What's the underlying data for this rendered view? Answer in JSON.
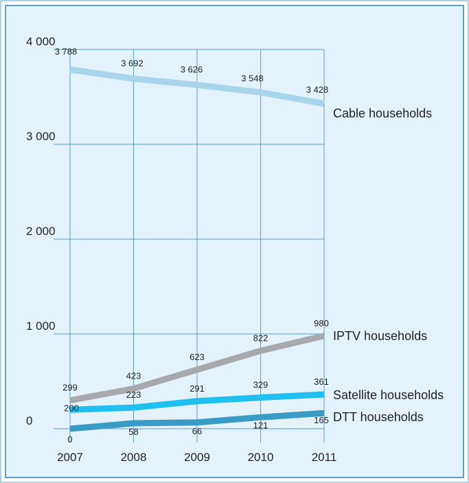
{
  "colors": {
    "panel_bg": "#e3f2fb",
    "panel_border": "#5aa0c8",
    "grid": "#5aa0c8",
    "text": "#231f20"
  },
  "chart_data": {
    "type": "line",
    "title": "",
    "xlabel": "",
    "ylabel": "",
    "x": [
      "2007",
      "2008",
      "2009",
      "2010",
      "2011"
    ],
    "ylim": [
      0,
      4000
    ],
    "yticks": [
      0,
      1000,
      2000,
      3000,
      4000
    ],
    "ytick_labels": [
      "0",
      "1 000",
      "2 000",
      "3 000",
      "4 000"
    ],
    "grid": true,
    "legend": "none",
    "series": [
      {
        "name": "Cable households",
        "color": "#a9d5ea",
        "values": [
          3788,
          3692,
          3626,
          3548,
          3428
        ],
        "labels": [
          "3 788",
          "3 692",
          "3 626",
          "3 548",
          "3 428"
        ]
      },
      {
        "name": "IPTV households",
        "color": "#a7a9ac",
        "values": [
          299,
          423,
          623,
          822,
          980
        ],
        "labels": [
          "299",
          "423",
          "623",
          "822",
          "980"
        ]
      },
      {
        "name": "Satellite households",
        "color": "#1fbfef",
        "values": [
          200,
          223,
          291,
          329,
          361
        ],
        "labels": [
          "200",
          "223",
          "291",
          "329",
          "361"
        ]
      },
      {
        "name": "DTT households",
        "color": "#3a9cc6",
        "values": [
          0,
          58,
          66,
          121,
          165
        ],
        "labels": [
          "0",
          "58",
          "66",
          "121",
          "165"
        ]
      }
    ]
  }
}
